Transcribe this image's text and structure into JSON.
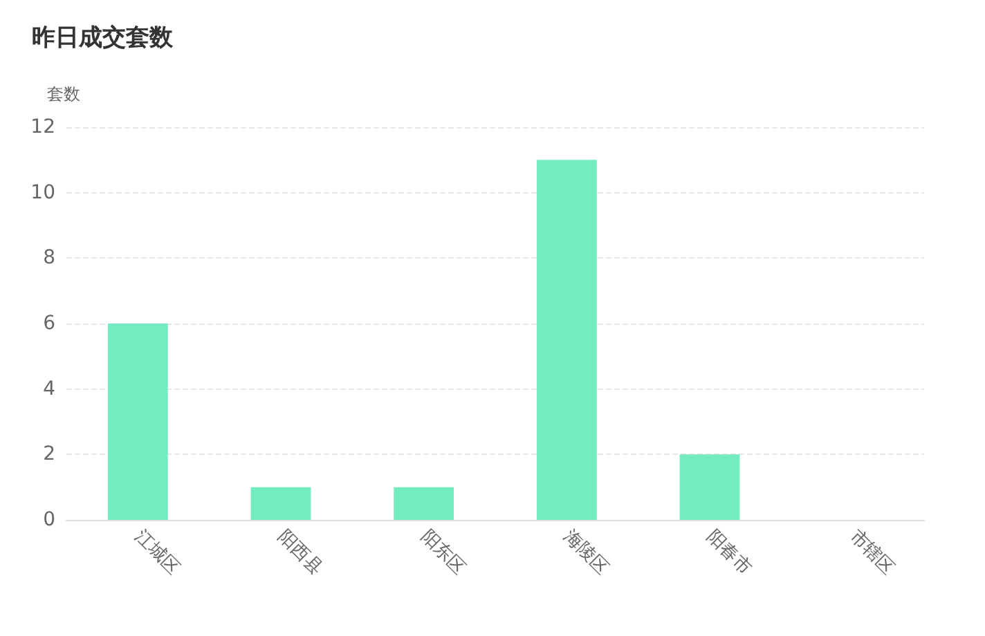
{
  "chart_data": {
    "type": "bar",
    "title": "昨日成交套数",
    "ylabel": "套数",
    "categories": [
      "江城区",
      "阳西县",
      "阳东区",
      "海陵区",
      "阳春市",
      "市辖区"
    ],
    "values": [
      6,
      1,
      1,
      11,
      2,
      0
    ],
    "color": "#73ecc0",
    "ylim": [
      0,
      12
    ],
    "yticks": [
      0,
      2,
      4,
      6,
      8,
      10,
      12
    ],
    "grid": "y"
  }
}
